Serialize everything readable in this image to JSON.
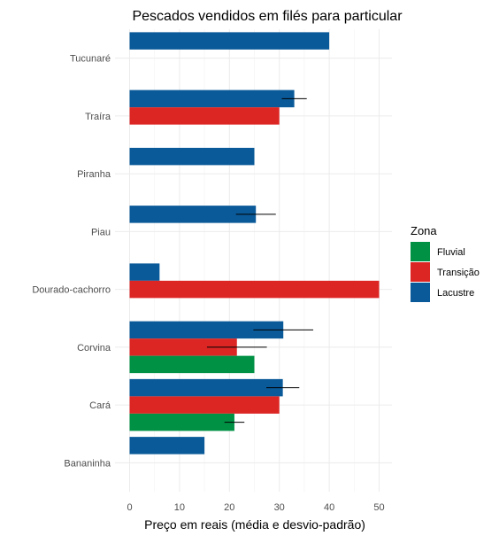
{
  "chart_data": {
    "type": "bar",
    "orientation": "horizontal",
    "title": "Pescados vendidos em filés para particular",
    "xlabel": "Preço em reais (média e desvio-padrão)",
    "ylabel": "",
    "xlim": [
      0,
      52
    ],
    "xticks": [
      0,
      10,
      20,
      30,
      40,
      50
    ],
    "grid": true,
    "legend": {
      "title": "Zona",
      "placement": "right",
      "entries": [
        "Fluvial",
        "Transição",
        "Lacustre"
      ]
    },
    "categories": [
      "Tucunaré",
      "Traíra",
      "Piranha",
      "Piau",
      "Dourado-cachorro",
      "Corvina",
      "Cará",
      "Bananinha"
    ],
    "series": [
      {
        "name": "Lacustre",
        "color": "#0a5a99",
        "values": [
          40,
          33,
          25,
          25.3,
          6,
          30.8,
          30.7,
          15
        ],
        "sd": [
          null,
          2.5,
          null,
          4,
          null,
          6,
          3.3,
          null
        ]
      },
      {
        "name": "Transição",
        "color": "#dc2624",
        "values": [
          null,
          30,
          null,
          null,
          50,
          21.5,
          30,
          null
        ],
        "sd": [
          null,
          null,
          null,
          null,
          null,
          6,
          null,
          null
        ]
      },
      {
        "name": "Fluvial",
        "color": "#009145",
        "values": [
          null,
          null,
          null,
          null,
          null,
          25,
          null,
          null
        ],
        "sd": [
          null,
          null,
          null,
          null,
          null,
          null,
          null,
          null
        ]
      }
    ],
    "cara_fluvial": {
      "value": 21,
      "sd": 2
    }
  }
}
